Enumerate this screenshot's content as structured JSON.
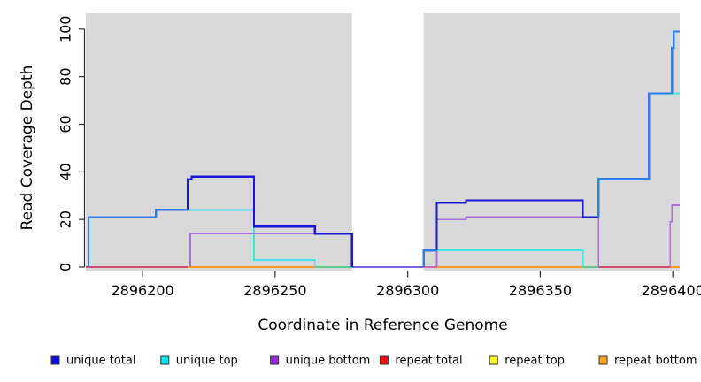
{
  "chart_data": {
    "type": "line",
    "subtype": "step-coverage-plot",
    "title": "",
    "xlabel": "Coordinate in Reference Genome",
    "ylabel": "Read Coverage Depth",
    "x_ticks": [
      2896200,
      2896250,
      2896300,
      2896350,
      2896400
    ],
    "y_ticks": [
      0,
      20,
      40,
      60,
      80,
      100
    ],
    "xlim": [
      2896178.6,
      2896402.6
    ],
    "ylim": [
      -1.49,
      106.62
    ],
    "plot_bg": "#d9d9d9",
    "background": "#ffffff",
    "axis_color": "#2b2b2b",
    "masked_region": {
      "x_start": 2896279,
      "x_end": 2896306,
      "color": "#ffffff"
    },
    "legend": [
      {
        "id": "unique-total",
        "label": "unique total",
        "color": "#0d0de0"
      },
      {
        "id": "unique-top",
        "label": "unique top",
        "color": "#00e8f0"
      },
      {
        "id": "unique-bottom",
        "label": "unique bottom",
        "color": "#9a2cd6"
      },
      {
        "id": "repeat-total",
        "label": "repeat total",
        "color": "#ee1111"
      },
      {
        "id": "repeat-top",
        "label": "repeat top",
        "color": "#ffff2a"
      },
      {
        "id": "repeat-bottom",
        "label": "repeat bottom",
        "color": "#ffa51e"
      }
    ],
    "series_steps": {
      "unique_total": [
        [
          2896180,
          21
        ],
        [
          2896205,
          24
        ],
        [
          2896217,
          37
        ],
        [
          2896219,
          38
        ],
        [
          2896242,
          17
        ],
        [
          2896265,
          14
        ],
        [
          2896279,
          0
        ],
        [
          2896306,
          7
        ],
        [
          2896311,
          27
        ],
        [
          2896322,
          28
        ],
        [
          2896366,
          21
        ],
        [
          2896372,
          37
        ],
        [
          2896391,
          73
        ],
        [
          2896400,
          92
        ],
        [
          2896400.5,
          99
        ]
      ],
      "unique_top": [
        [
          2896217,
          24
        ],
        [
          2896242,
          3
        ],
        [
          2896265,
          0
        ],
        [
          2896306,
          7
        ],
        [
          2896366,
          0
        ],
        [
          2896400,
          73
        ]
      ],
      "unique_bottom": [
        [
          2896218,
          14
        ],
        [
          2896279,
          0
        ],
        [
          2896311,
          20
        ],
        [
          2896322,
          21
        ],
        [
          2896372,
          0
        ],
        [
          2896399,
          26
        ]
      ],
      "repeat_total": [
        [
          2896179,
          0
        ]
      ],
      "repeat_top": [
        [
          2896179,
          0
        ]
      ],
      "repeat_bottom": [
        [
          2896179,
          0
        ]
      ]
    },
    "lines": [
      {
        "name": "repeat-bottom-baseline",
        "color": "#ff9a1c",
        "w": 2.4,
        "pts": [
          [
            2896178.6,
            0
          ],
          [
            2896402.6,
            0
          ]
        ]
      },
      {
        "name": "baseline-red-left",
        "color": "#d14a6a",
        "w": 1.8,
        "pts": [
          [
            2896178.6,
            0
          ],
          [
            2896217,
            0
          ]
        ]
      },
      {
        "name": "baseline-red-right",
        "color": "#d14a6a",
        "w": 1.8,
        "pts": [
          [
            2896372,
            0
          ],
          [
            2896399,
            0
          ]
        ]
      },
      {
        "name": "baseline-magenta",
        "color": "#d465ae",
        "w": 1.8,
        "pts": [
          [
            2896306,
            0
          ],
          [
            2896311,
            0
          ]
        ]
      },
      {
        "name": "baseline-green-1",
        "color": "#5bcb8b",
        "w": 1.8,
        "pts": [
          [
            2896265,
            0
          ],
          [
            2896279,
            0
          ]
        ]
      },
      {
        "name": "baseline-green-2",
        "color": "#5bcb8b",
        "w": 1.8,
        "pts": [
          [
            2896366,
            0
          ],
          [
            2896372,
            0
          ]
        ]
      },
      {
        "name": "gap-baseline-violet",
        "color": "#7a62e6",
        "w": 2.2,
        "pts": [
          [
            2896279,
            0
          ],
          [
            2896306,
            0
          ]
        ]
      },
      {
        "name": "unique-top-1",
        "color": "#3fe3ea",
        "w": 1.8,
        "pts": [
          [
            2896217,
            24
          ],
          [
            2896242,
            24
          ],
          [
            2896242,
            3
          ],
          [
            2896265,
            3
          ],
          [
            2896265,
            0
          ]
        ]
      },
      {
        "name": "unique-top-2",
        "color": "#3fe3ea",
        "w": 1.8,
        "pts": [
          [
            2896306,
            7
          ],
          [
            2896366,
            7
          ],
          [
            2896366,
            0
          ]
        ]
      },
      {
        "name": "unique-top-3",
        "color": "#3fe3ea",
        "w": 1.8,
        "pts": [
          [
            2896400.3,
            73
          ],
          [
            2896402.6,
            73
          ]
        ]
      },
      {
        "name": "unique-bottom-1",
        "color": "#ad6de1",
        "w": 1.8,
        "pts": [
          [
            2896218,
            0
          ],
          [
            2896218,
            14
          ],
          [
            2896279,
            14
          ],
          [
            2896279,
            0
          ]
        ]
      },
      {
        "name": "unique-bottom-2",
        "color": "#ad6de1",
        "w": 1.8,
        "pts": [
          [
            2896311,
            0
          ],
          [
            2896311,
            20
          ],
          [
            2896322,
            20
          ],
          [
            2896322,
            21
          ],
          [
            2896372,
            21
          ],
          [
            2896372,
            0
          ]
        ]
      },
      {
        "name": "unique-bottom-3",
        "color": "#ad6de1",
        "w": 1.8,
        "pts": [
          [
            2896399,
            0
          ],
          [
            2896399,
            19
          ],
          [
            2896399.7,
            19
          ],
          [
            2896399.7,
            26
          ],
          [
            2896402.6,
            26
          ]
        ]
      },
      {
        "name": "unique-total-dark-1",
        "color": "#1a18d8",
        "w": 2.2,
        "pts": [
          [
            2896217,
            24
          ],
          [
            2896217,
            37
          ],
          [
            2896218.5,
            37
          ],
          [
            2896218.5,
            38
          ],
          [
            2896242,
            38
          ],
          [
            2896242,
            17
          ],
          [
            2896265,
            17
          ],
          [
            2896265,
            14
          ],
          [
            2896279,
            14
          ],
          [
            2896279,
            0
          ]
        ]
      },
      {
        "name": "unique-total-dark-2",
        "color": "#1a18d8",
        "w": 2.2,
        "pts": [
          [
            2896311,
            7
          ],
          [
            2896311,
            27
          ],
          [
            2896322,
            27
          ],
          [
            2896322,
            28
          ],
          [
            2896366,
            28
          ],
          [
            2896366,
            21
          ],
          [
            2896372,
            21
          ]
        ]
      },
      {
        "name": "unique-total-light-1",
        "color": "#2e7ee9",
        "w": 2.4,
        "pts": [
          [
            2896179.6,
            0
          ],
          [
            2896179.6,
            21
          ],
          [
            2896205,
            21
          ],
          [
            2896205,
            24
          ],
          [
            2896217,
            24
          ]
        ]
      },
      {
        "name": "unique-total-light-2",
        "color": "#2e7ee9",
        "w": 2.4,
        "pts": [
          [
            2896306,
            0
          ],
          [
            2896306,
            7
          ],
          [
            2896311,
            7
          ]
        ]
      },
      {
        "name": "unique-total-light-3",
        "color": "#2e7ee9",
        "w": 2.4,
        "pts": [
          [
            2896372,
            21
          ],
          [
            2896372,
            37
          ],
          [
            2896391,
            37
          ],
          [
            2896391,
            73
          ],
          [
            2896399.7,
            73
          ],
          [
            2896399.7,
            92
          ],
          [
            2896400.3,
            92
          ],
          [
            2896400.3,
            99
          ],
          [
            2896402.6,
            99
          ]
        ]
      }
    ]
  }
}
